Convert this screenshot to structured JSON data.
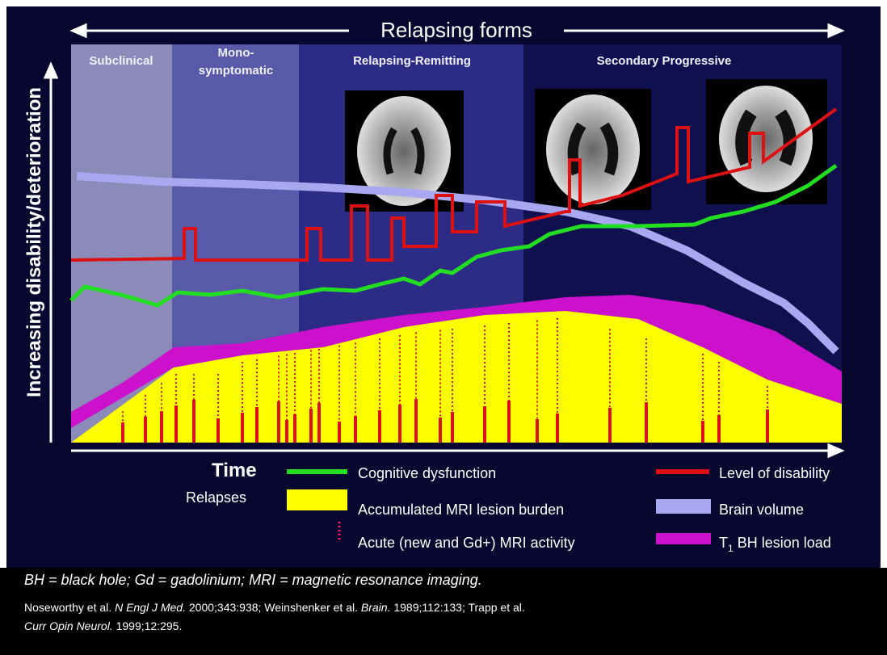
{
  "header": {
    "title": "Relapsing forms"
  },
  "phases": [
    "Subclinical",
    [
      "Mono-",
      "symptomatic"
    ],
    "Relapsing-Remitting",
    "Secondary Progressive"
  ],
  "axes": {
    "y_label": "Increasing disability/deterioration",
    "x_label": "Time"
  },
  "legend": {
    "relapses": "Relapses",
    "items": [
      "Cognitive dysfunction",
      "Accumulated MRI lesion burden",
      "Acute (new and Gd+) MRI activity",
      "Level of disability",
      "Brain volume",
      [
        "T",
        "1",
        " BH lesion load"
      ]
    ]
  },
  "footnote": "BH = black hole; Gd = gadolinium; MRI = magnetic resonance imaging.",
  "references": [
    [
      "Noseworthy et al. ",
      "N Engl J Med.",
      " 2000;343:938; Weinshenker et al. ",
      "Brain.",
      " 1989;112:133; Trapp et al."
    ],
    [
      "Curr Opin Neurol.",
      " 1999;12:295."
    ]
  ]
}
